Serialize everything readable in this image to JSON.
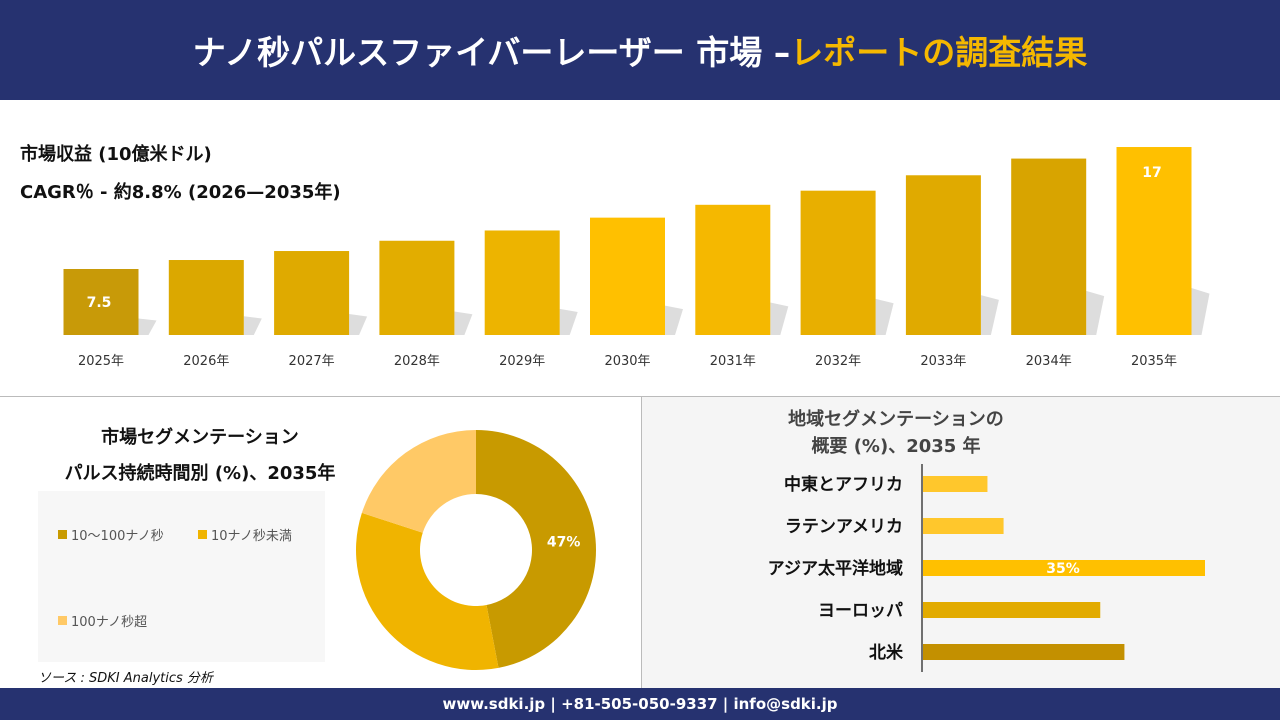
{
  "header": {
    "title_main": "ナノ秒パルスファイバーレーザー 市場 –",
    "title_accent": "レポートの調査結果"
  },
  "revenue": {
    "unit_label": "市場収益 (10億米ドル)",
    "cagr_label": "CAGR％ - 約8.8% (2026—2035年)"
  },
  "chart_data": [
    {
      "type": "bar",
      "categories": [
        "2025年",
        "2026年",
        "2027年",
        "2028年",
        "2029年",
        "2030年",
        "2031年",
        "2032年",
        "2033年",
        "2034年",
        "2035年"
      ],
      "values": [
        7.5,
        8.2,
        8.9,
        9.7,
        10.5,
        11.5,
        12.5,
        13.6,
        14.8,
        16.1,
        17
      ],
      "data_labels": [
        "7.5",
        "",
        "",
        "",
        "",
        "",
        "",
        "",
        "",
        "",
        "17"
      ],
      "ylabel": "市場収益 (10億米ドル)",
      "grid": false,
      "colors": [
        "#c89a08",
        "#dba800",
        "#dfaa00",
        "#e2ad00",
        "#edb400",
        "#ffc000",
        "#f5b800",
        "#e8af00",
        "#e0aa00",
        "#d8a400",
        "#ffc000"
      ]
    },
    {
      "type": "pie",
      "title": "市場セグメンテーション パルス持続時間別 (%)、2035年",
      "title_line1": "市場セグメンテーション",
      "title_line2": "パルス持続時間別 (%)、2035年",
      "categories": [
        "10〜100ナノ秒",
        "10ナノ秒未満",
        "100ナノ秒超"
      ],
      "values": [
        47,
        33,
        20
      ],
      "data_labels": [
        "47%",
        "",
        ""
      ],
      "colors": [
        "#c89a00",
        "#f0b400",
        "#ffc966"
      ],
      "legend": "left"
    },
    {
      "type": "bar",
      "orientation": "horizontal",
      "title_line1": "地域セグメンテーションの",
      "title_line2": "概要 (%)、2035 年",
      "categories": [
        "中東とアフリカ",
        "ラテンアメリカ",
        "アジア太平洋地域",
        "ヨーロッパ",
        "北米"
      ],
      "values": [
        8,
        10,
        35,
        22,
        25
      ],
      "data_labels": [
        "",
        "",
        "35%",
        "",
        ""
      ],
      "colors": [
        "#ffc72c",
        "#ffc72c",
        "#ffc000",
        "#e2ab00",
        "#c39000"
      ]
    }
  ],
  "source": "ソース : SDKI Analytics 分析",
  "footer": "www.sdki.jp | +81-505-050-9337 | info@sdki.jp"
}
